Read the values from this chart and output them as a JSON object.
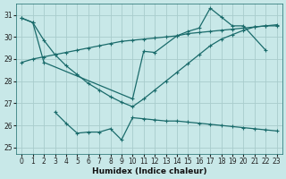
{
  "xlabel": "Humidex (Indice chaleur)",
  "bg_color": "#c8e8e8",
  "grid_color": "#a8cccc",
  "line_color": "#1a6b6b",
  "xlim": [
    -0.5,
    23.5
  ],
  "ylim": [
    24.7,
    31.5
  ],
  "yticks": [
    25,
    26,
    27,
    28,
    29,
    30,
    31
  ],
  "xticks": [
    0,
    1,
    2,
    3,
    4,
    5,
    6,
    7,
    8,
    9,
    10,
    11,
    12,
    13,
    14,
    15,
    16,
    17,
    18,
    19,
    20,
    21,
    22,
    23
  ],
  "s0_x": [
    0,
    1,
    2,
    3,
    4,
    5,
    6,
    7,
    8,
    9,
    10,
    11,
    12,
    13,
    14,
    15,
    16,
    17,
    18,
    19,
    20,
    21,
    22,
    23
  ],
  "s0_y": [
    30.85,
    30.65,
    29.85,
    29.2,
    28.7,
    28.3,
    27.9,
    27.6,
    27.3,
    27.05,
    26.85,
    27.2,
    27.6,
    28.0,
    28.4,
    28.8,
    29.2,
    29.6,
    29.9,
    30.1,
    30.3,
    30.45,
    30.5,
    30.5
  ],
  "s1_x": [
    0,
    1,
    2,
    3,
    4,
    5,
    6,
    7,
    8,
    9,
    10,
    11,
    12,
    13,
    14,
    15,
    16,
    17,
    18,
    19,
    20,
    21,
    22,
    23
  ],
  "s1_y": [
    28.85,
    29.0,
    29.1,
    29.2,
    29.3,
    29.4,
    29.5,
    29.6,
    29.7,
    29.8,
    29.85,
    29.9,
    29.95,
    30.0,
    30.05,
    30.15,
    30.2,
    30.25,
    30.3,
    30.35,
    30.4,
    30.45,
    30.5,
    30.55
  ],
  "s2_x": [
    0,
    1,
    2,
    10,
    11,
    12,
    14,
    15,
    16,
    17,
    18,
    19,
    20,
    22
  ],
  "s2_y": [
    30.85,
    30.65,
    28.85,
    27.2,
    29.35,
    29.3,
    30.05,
    30.25,
    30.4,
    31.3,
    30.9,
    30.5,
    30.5,
    29.4
  ],
  "s3_x": [
    3,
    4,
    5,
    6,
    7,
    8,
    9,
    10,
    11,
    12,
    13,
    14,
    15,
    16,
    17,
    18,
    19,
    20,
    21,
    22,
    23
  ],
  "s3_y": [
    26.6,
    26.1,
    25.65,
    25.7,
    25.7,
    25.85,
    25.35,
    26.35,
    26.3,
    26.25,
    26.2,
    26.2,
    26.15,
    26.1,
    26.05,
    26.0,
    25.95,
    25.9,
    25.85,
    25.8,
    25.75
  ]
}
